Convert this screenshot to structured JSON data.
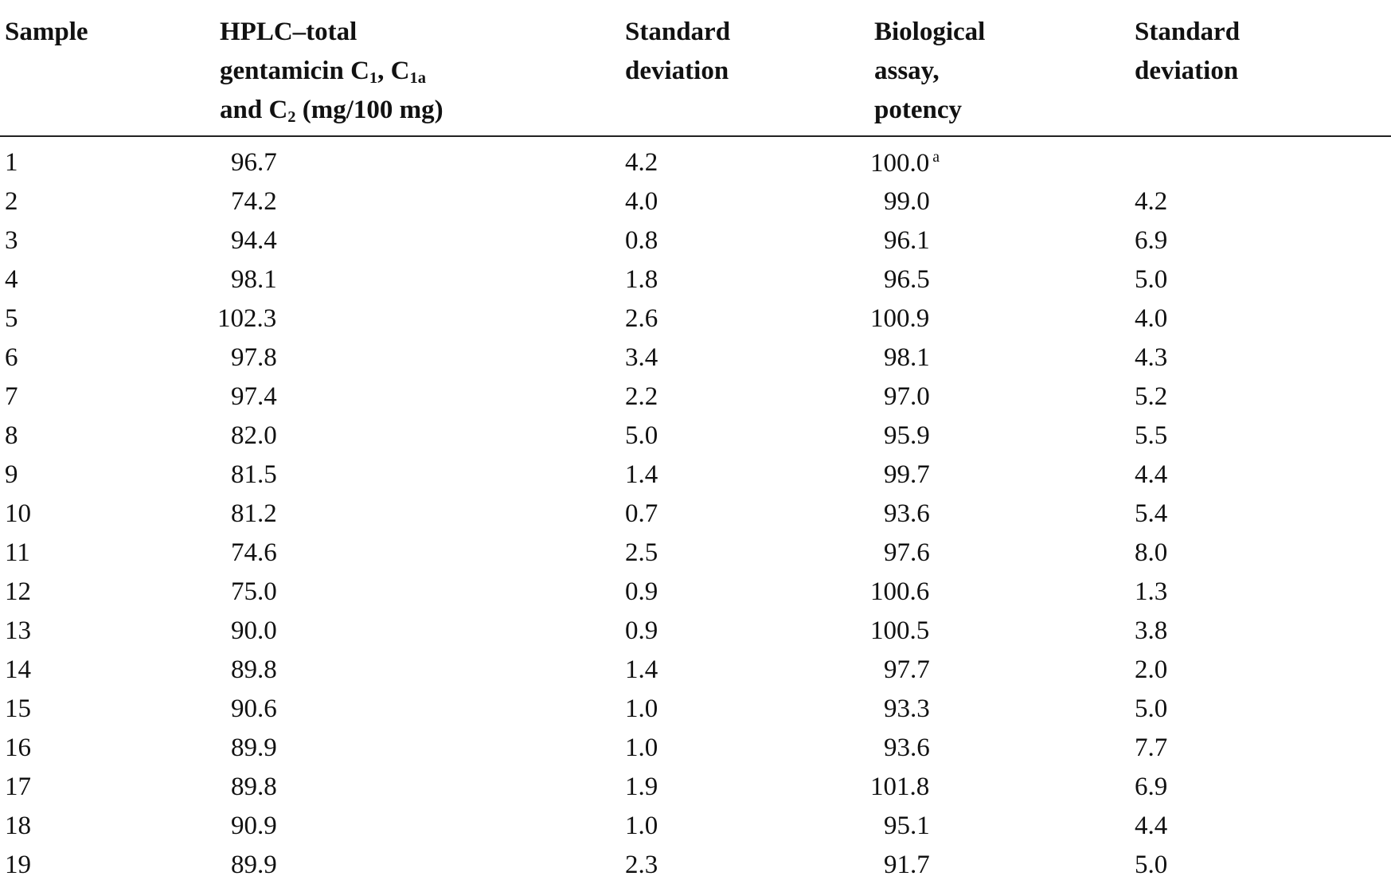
{
  "table": {
    "header": [
      {
        "lines": [
          [
            "Sample"
          ]
        ]
      },
      {
        "lines": [
          [
            "HPLC–total"
          ],
          [
            "gentamicin C",
            {
              "sub": "1"
            },
            ", C",
            {
              "sub": "1a"
            }
          ],
          [
            "and C",
            {
              "sub": "2"
            },
            " (mg/100 mg)"
          ]
        ]
      },
      {
        "lines": [
          [
            "Standard"
          ],
          [
            "deviation"
          ]
        ]
      },
      {
        "lines": [
          [
            "Biological"
          ],
          [
            "assay,"
          ],
          [
            "potency"
          ]
        ]
      },
      {
        "lines": [
          [
            "Standard"
          ],
          [
            "deviation"
          ]
        ]
      }
    ],
    "rows": [
      {
        "sample": "1",
        "hplc": "96.7",
        "sd_hplc": "4.2",
        "bio": "100.0",
        "bio_note": "a"
      },
      {
        "sample": "2",
        "hplc": "74.2",
        "sd_hplc": "4.0",
        "bio": "99.0",
        "sd_bio": "4.2"
      },
      {
        "sample": "3",
        "hplc": "94.4",
        "sd_hplc": "0.8",
        "bio": "96.1",
        "sd_bio": "6.9"
      },
      {
        "sample": "4",
        "hplc": "98.1",
        "sd_hplc": "1.8",
        "bio": "96.5",
        "sd_bio": "5.0"
      },
      {
        "sample": "5",
        "hplc": "102.3",
        "sd_hplc": "2.6",
        "bio": "100.9",
        "sd_bio": "4.0"
      },
      {
        "sample": "6",
        "hplc": "97.8",
        "sd_hplc": "3.4",
        "bio": "98.1",
        "sd_bio": "4.3"
      },
      {
        "sample": "7",
        "hplc": "97.4",
        "sd_hplc": "2.2",
        "bio": "97.0",
        "sd_bio": "5.2"
      },
      {
        "sample": "8",
        "hplc": "82.0",
        "sd_hplc": "5.0",
        "bio": "95.9",
        "sd_bio": "5.5"
      },
      {
        "sample": "9",
        "hplc": "81.5",
        "sd_hplc": "1.4",
        "bio": "99.7",
        "sd_bio": "4.4"
      },
      {
        "sample": "10",
        "hplc": "81.2",
        "sd_hplc": "0.7",
        "bio": "93.6",
        "sd_bio": "5.4"
      },
      {
        "sample": "11",
        "hplc": "74.6",
        "sd_hplc": "2.5",
        "bio": "97.6",
        "sd_bio": "8.0"
      },
      {
        "sample": "12",
        "hplc": "75.0",
        "sd_hplc": "0.9",
        "bio": "100.6",
        "sd_bio": "1.3"
      },
      {
        "sample": "13",
        "hplc": "90.0",
        "sd_hplc": "0.9",
        "bio": "100.5",
        "sd_bio": "3.8"
      },
      {
        "sample": "14",
        "hplc": "89.8",
        "sd_hplc": "1.4",
        "bio": "97.7",
        "sd_bio": "2.0"
      },
      {
        "sample": "15",
        "hplc": "90.6",
        "sd_hplc": "1.0",
        "bio": "93.3",
        "sd_bio": "5.0"
      },
      {
        "sample": "16",
        "hplc": "89.9",
        "sd_hplc": "1.0",
        "bio": "93.6",
        "sd_bio": "7.7"
      },
      {
        "sample": "17",
        "hplc": "89.8",
        "sd_hplc": "1.9",
        "bio": "101.8",
        "sd_bio": "6.9"
      },
      {
        "sample": "18",
        "hplc": "90.9",
        "sd_hplc": "1.0",
        "bio": "95.1",
        "sd_bio": "4.4"
      },
      {
        "sample": "19",
        "hplc": "89.9",
        "sd_hplc": "2.3",
        "bio": "91.7",
        "sd_bio": "5.0"
      }
    ]
  }
}
